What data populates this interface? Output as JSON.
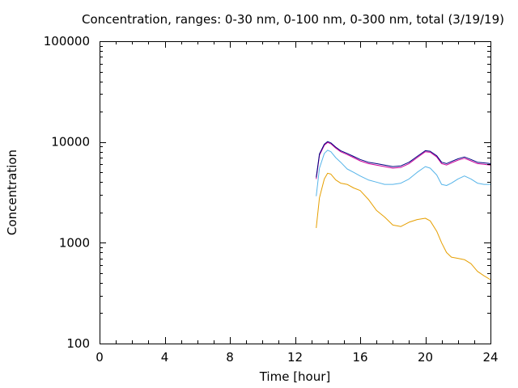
{
  "chart_data": {
    "type": "line",
    "title": "Concentration, ranges: 0-30 nm, 0-100 nm, 0-300 nm, total (3/19/19)",
    "xlabel": "Time [hour]",
    "ylabel": "Concentration",
    "xlim": [
      0,
      24
    ],
    "ylim": [
      100,
      100000
    ],
    "yscale": "log",
    "grid": false,
    "xticks": [
      "0",
      "4",
      "8",
      "12",
      "16",
      "20",
      "24"
    ],
    "yticks": [
      "100",
      "1000",
      "10000",
      "100000"
    ],
    "series": [
      {
        "color": "#e69f00",
        "x": [
          13.3,
          13.5,
          13.8,
          14.0,
          14.2,
          14.5,
          14.8,
          15.2,
          15.6,
          16.0,
          16.5,
          17.0,
          17.5,
          18.0,
          18.5,
          19.0,
          19.5,
          20.0,
          20.3,
          20.7,
          21.0,
          21.3,
          21.6,
          22.0,
          22.4,
          22.8,
          23.2,
          23.6,
          24.0
        ],
        "y": [
          1400,
          2800,
          4300,
          4900,
          4800,
          4200,
          3900,
          3800,
          3500,
          3300,
          2700,
          2100,
          1800,
          1500,
          1450,
          1600,
          1700,
          1750,
          1650,
          1300,
          1000,
          800,
          720,
          700,
          680,
          620,
          520,
          470,
          430
        ]
      },
      {
        "color": "#56b4e9",
        "x": [
          13.3,
          13.5,
          13.8,
          14.0,
          14.2,
          14.5,
          14.8,
          15.2,
          15.6,
          16.0,
          16.5,
          17.0,
          17.5,
          18.0,
          18.5,
          19.0,
          19.5,
          20.0,
          20.3,
          20.7,
          21.0,
          21.3,
          21.6,
          22.0,
          22.4,
          22.8,
          23.2,
          23.6,
          24.0
        ],
        "y": [
          2900,
          5500,
          7700,
          8300,
          8000,
          7000,
          6300,
          5400,
          5000,
          4600,
          4200,
          4000,
          3800,
          3800,
          3900,
          4300,
          5000,
          5700,
          5500,
          4700,
          3800,
          3700,
          3900,
          4300,
          4600,
          4300,
          3900,
          3800,
          3800
        ]
      },
      {
        "color": "#cc0099",
        "x": [
          13.3,
          13.5,
          13.8,
          14.0,
          14.2,
          14.5,
          14.8,
          15.2,
          15.6,
          16.0,
          16.5,
          17.0,
          17.5,
          18.0,
          18.5,
          19.0,
          19.5,
          20.0,
          20.3,
          20.7,
          21.0,
          21.3,
          21.6,
          22.0,
          22.4,
          22.8,
          23.2,
          23.6,
          24.0
        ],
        "y": [
          4300,
          7400,
          9300,
          9900,
          9600,
          8700,
          8000,
          7500,
          7000,
          6500,
          6100,
          5900,
          5700,
          5500,
          5600,
          6100,
          7000,
          8000,
          7900,
          7100,
          6100,
          5900,
          6200,
          6600,
          6900,
          6500,
          6100,
          6000,
          5900
        ]
      },
      {
        "color": "#000080",
        "x": [
          13.3,
          13.5,
          13.8,
          14.0,
          14.2,
          14.5,
          14.8,
          15.2,
          15.6,
          16.0,
          16.5,
          17.0,
          17.5,
          18.0,
          18.5,
          19.0,
          19.5,
          20.0,
          20.3,
          20.7,
          21.0,
          21.3,
          21.6,
          22.0,
          22.4,
          22.8,
          23.2,
          23.6,
          24.0
        ],
        "y": [
          4450,
          7600,
          9500,
          10100,
          9800,
          8900,
          8200,
          7700,
          7200,
          6700,
          6300,
          6100,
          5900,
          5700,
          5800,
          6300,
          7200,
          8200,
          8100,
          7300,
          6300,
          6100,
          6400,
          6800,
          7100,
          6700,
          6300,
          6200,
          6100
        ]
      }
    ]
  }
}
